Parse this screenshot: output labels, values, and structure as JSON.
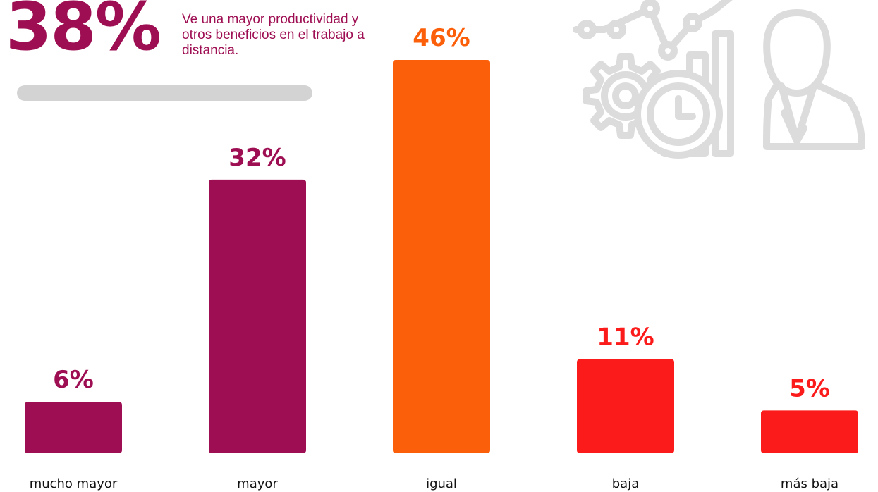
{
  "headline": {
    "percent": "38%",
    "text": "Ve una mayor productividad y otros beneficios en el trabajo a distancia."
  },
  "colors": {
    "accent_magenta": "#9e0e52",
    "accent_orange": "#fc5f0a",
    "accent_red": "#fb1b1b",
    "divider_gray": "#d3d3d3",
    "illustration_gray": "#dcdcdc"
  },
  "illustration": {
    "icons": [
      "line-chart-icon",
      "gear-icon",
      "clock-icon",
      "bar-chart-icon",
      "person-icon"
    ]
  },
  "chart_data": {
    "type": "bar",
    "categories": [
      "mucho mayor",
      "mayor",
      "igual",
      "baja",
      "más baja"
    ],
    "values": [
      6,
      32,
      46,
      11,
      5
    ],
    "value_labels": [
      "6%",
      "32%",
      "46%",
      "11%",
      "5%"
    ],
    "bar_colors": [
      "#9e0e52",
      "#9e0e52",
      "#fc5f0a",
      "#fb1b1b",
      "#fb1b1b"
    ],
    "title": "",
    "xlabel": "",
    "ylabel": "",
    "ylim": [
      0,
      46
    ],
    "grid": false,
    "legend": "none"
  }
}
